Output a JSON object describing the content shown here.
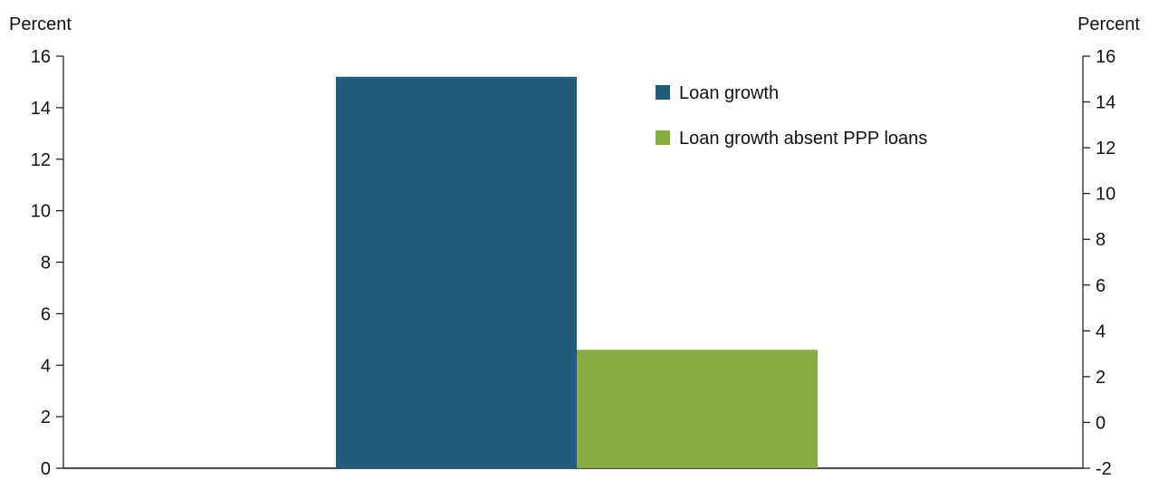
{
  "chart_data": {
    "type": "bar",
    "categories": [
      ""
    ],
    "series": [
      {
        "name": "Loan growth",
        "values": [
          15.2
        ],
        "color": "#215d7a"
      },
      {
        "name": "Loan growth absent PPP loans",
        "values": [
          4.6
        ],
        "color": "#88ab46"
      }
    ],
    "left_axis": {
      "label": "Percent",
      "range": [
        0,
        16
      ],
      "ticks": [
        "0",
        "2",
        "4",
        "6",
        "8",
        "10",
        "12",
        "14",
        "16"
      ]
    },
    "right_axis": {
      "label": "Percent",
      "range": [
        -2,
        16
      ],
      "ticks": [
        "-2",
        "0",
        "2",
        "4",
        "6",
        "8",
        "10",
        "12",
        "14",
        "16"
      ]
    },
    "legend_position": "top-right",
    "grid": false
  }
}
